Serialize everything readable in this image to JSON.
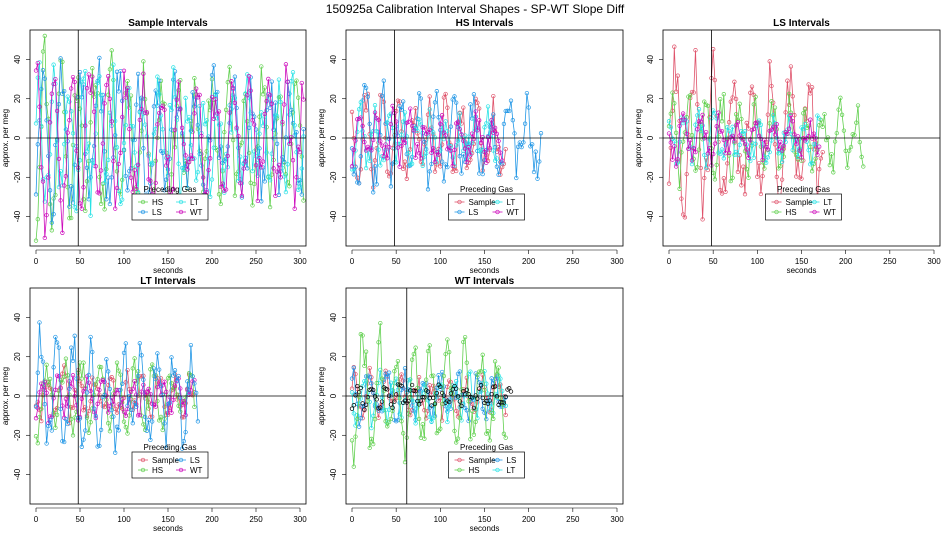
{
  "figure_title": "150925a   Calibration Interval Shapes - SP-WT Slope Diff",
  "colors": {
    "Sample": "#df536b",
    "HS": "#61d04f",
    "LS": "#2297e6",
    "LT": "#28e2e5",
    "WT": "#cd0bbc",
    "WT_self": "#000000",
    "axis": "#000000"
  },
  "chart_data": [
    {
      "type": "line",
      "title": "Sample Intervals",
      "xlabel": "seconds",
      "ylabel": "approx. per meg",
      "xlim": [
        0,
        300
      ],
      "ylim": [
        -55,
        55
      ],
      "xticks": [
        0,
        50,
        100,
        150,
        200,
        250,
        300
      ],
      "yticks": [
        -40,
        -20,
        0,
        20,
        40
      ],
      "vline_x": 48,
      "legend": {
        "title": "Preceding Gas",
        "position": "bottom-center",
        "entries": [
          "HS",
          "LT",
          "LS",
          "WT"
        ]
      },
      "series": [
        {
          "name": "HS",
          "xmax": 305,
          "amp": 45,
          "noise": 14,
          "freq": 0.33,
          "seed": 11
        },
        {
          "name": "LS",
          "xmax": 305,
          "amp": 40,
          "noise": 14,
          "freq": 0.29,
          "seed": 12
        },
        {
          "name": "LT",
          "xmax": 305,
          "amp": 35,
          "noise": 14,
          "freq": 0.37,
          "seed": 13
        },
        {
          "name": "WT",
          "xmax": 305,
          "amp": 42,
          "noise": 14,
          "freq": 0.31,
          "seed": 14
        }
      ]
    },
    {
      "type": "line",
      "title": "HS Intervals",
      "xlabel": "seconds",
      "ylabel": "approx. per meg",
      "xlim": [
        0,
        300
      ],
      "ylim": [
        -55,
        55
      ],
      "xticks": [
        0,
        50,
        100,
        150,
        200,
        250,
        300
      ],
      "yticks": [
        -40,
        -20,
        0,
        20,
        40
      ],
      "vline_x": 48,
      "legend": {
        "title": "Preceding Gas",
        "position": "bottom-center",
        "entries": [
          "Sample",
          "LT",
          "LS",
          "WT"
        ]
      },
      "series": [
        {
          "name": "Sample",
          "xmax": 175,
          "amp": 22,
          "noise": 10,
          "freq": 0.35,
          "seed": 21
        },
        {
          "name": "LS",
          "xmax": 215,
          "amp": 24,
          "noise": 10,
          "freq": 0.31,
          "seed": 22
        },
        {
          "name": "LT",
          "xmax": 165,
          "amp": 14,
          "noise": 8,
          "freq": 0.39,
          "seed": 23
        },
        {
          "name": "WT",
          "xmax": 170,
          "amp": 12,
          "noise": 7,
          "freq": 0.33,
          "seed": 24
        }
      ]
    },
    {
      "type": "line",
      "title": "LS Intervals",
      "xlabel": "seconds",
      "ylabel": "approx. per meg",
      "xlim": [
        0,
        300
      ],
      "ylim": [
        -55,
        55
      ],
      "xticks": [
        0,
        50,
        100,
        150,
        200,
        250,
        300
      ],
      "yticks": [
        -40,
        -20,
        0,
        20,
        40
      ],
      "vline_x": 48,
      "legend": {
        "title": "Preceding Gas",
        "position": "bottom-center",
        "entries": [
          "Sample",
          "LT",
          "HS",
          "WT"
        ]
      },
      "series": [
        {
          "name": "Sample",
          "xmax": 175,
          "amp": 40,
          "noise": 14,
          "freq": 0.29,
          "seed": 31
        },
        {
          "name": "HS",
          "xmax": 220,
          "amp": 20,
          "noise": 10,
          "freq": 0.33,
          "seed": 32
        },
        {
          "name": "LT",
          "xmax": 170,
          "amp": 12,
          "noise": 7,
          "freq": 0.37,
          "seed": 33
        },
        {
          "name": "WT",
          "xmax": 170,
          "amp": 10,
          "noise": 6,
          "freq": 0.31,
          "seed": 34
        }
      ]
    },
    {
      "type": "line",
      "title": "LT Intervals",
      "xlabel": "seconds",
      "ylabel": "approx. per meg",
      "xlim": [
        0,
        300
      ],
      "ylim": [
        -55,
        55
      ],
      "xticks": [
        0,
        50,
        100,
        150,
        200,
        250,
        300
      ],
      "yticks": [
        -40,
        -20,
        0,
        20,
        40
      ],
      "vline_x": 48,
      "legend": {
        "title": "Preceding Gas",
        "position": "bottom-center",
        "entries": [
          "Sample",
          "LS",
          "HS",
          "WT"
        ]
      },
      "series": [
        {
          "name": "Sample",
          "xmax": 180,
          "amp": 12,
          "noise": 6,
          "freq": 0.35,
          "seed": 41
        },
        {
          "name": "HS",
          "xmax": 180,
          "amp": 18,
          "noise": 8,
          "freq": 0.31,
          "seed": 42
        },
        {
          "name": "WT",
          "xmax": 180,
          "amp": 10,
          "noise": 6,
          "freq": 0.37,
          "seed": 43
        },
        {
          "name": "LS",
          "xmax": 185,
          "amp": 28,
          "noise": 12,
          "freq": 0.33,
          "seed": 44
        }
      ]
    },
    {
      "type": "line",
      "title": "WT Intervals",
      "xlabel": "seconds",
      "ylabel": "approx. per meg",
      "xlim": [
        0,
        300
      ],
      "ylim": [
        -55,
        55
      ],
      "xticks": [
        0,
        50,
        100,
        150,
        200,
        250,
        300
      ],
      "yticks": [
        -40,
        -20,
        0,
        20,
        40
      ],
      "vline_x": 62,
      "legend": {
        "title": "Preceding Gas",
        "position": "bottom-center",
        "entries": [
          "Sample",
          "LS",
          "HS",
          "LT"
        ]
      },
      "series": [
        {
          "name": "Sample",
          "xmax": 175,
          "amp": 10,
          "noise": 6,
          "freq": 0.35,
          "seed": 51
        },
        {
          "name": "LS",
          "xmax": 175,
          "amp": 12,
          "noise": 6,
          "freq": 0.31,
          "seed": 52
        },
        {
          "name": "LT",
          "xmax": 175,
          "amp": 12,
          "noise": 6,
          "freq": 0.37,
          "seed": 53
        },
        {
          "name": "HS",
          "xmax": 175,
          "amp": 30,
          "noise": 12,
          "freq": 0.33,
          "seed": 54
        },
        {
          "name": "WT_self",
          "xmax": 180,
          "amp": 5,
          "noise": 3,
          "freq": 0.41,
          "seed": 55,
          "markers_only": true
        }
      ]
    }
  ]
}
